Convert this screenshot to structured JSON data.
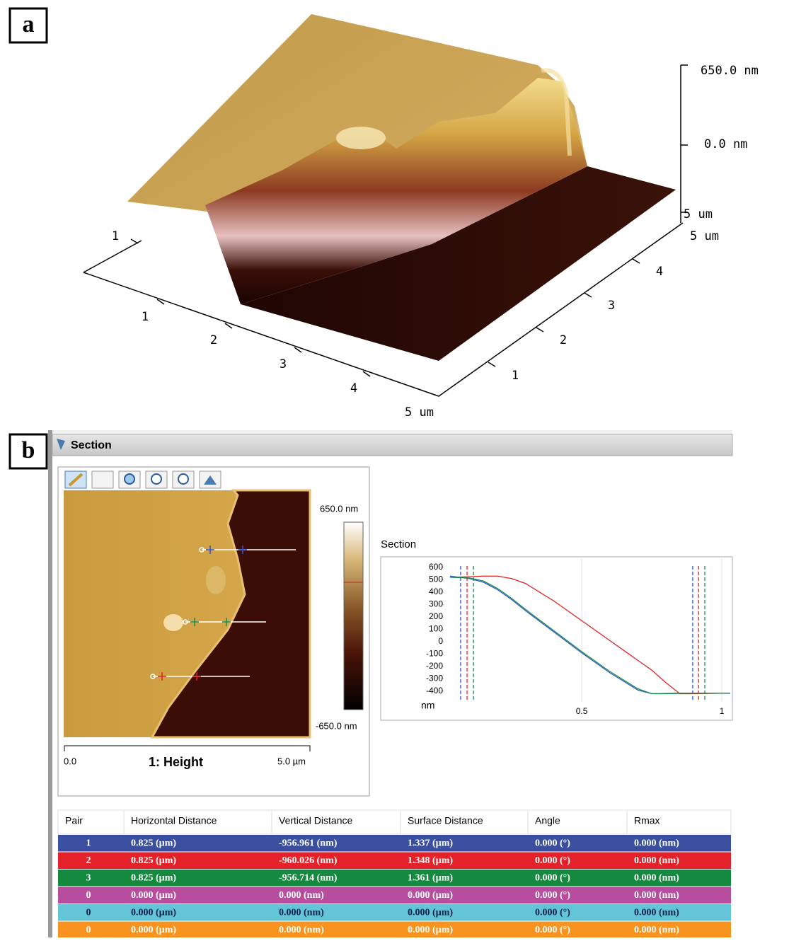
{
  "panel_a": {
    "label": "a",
    "z_ticks": [
      "650.0 nm",
      "0.0 nm",
      "5 um"
    ],
    "left_ticks": [
      "1",
      "2",
      "3",
      "4",
      "5 um"
    ],
    "right_ticks": [
      "1",
      "2",
      "3",
      "4",
      "5 um"
    ],
    "back_tick": "1"
  },
  "panel_b": {
    "label": "b",
    "window_title": "Section",
    "image": {
      "scale_max": "650.0 nm",
      "scale_min": "-650.0 nm",
      "bar_start": "0.0",
      "channel": "1: Height",
      "bar_end": "5.0 µm"
    },
    "table": {
      "header": [
        "Pair",
        "Horizontal Distance",
        "Vertical Distance",
        "Surface Distance",
        "Angle",
        "Rmax"
      ],
      "rows": [
        {
          "color": "#3a4fa0",
          "cells": [
            "1",
            "0.825 (µm)",
            "-956.961 (nm)",
            "1.337 (µm)",
            "0.000 (°)",
            "0.000 (nm)"
          ]
        },
        {
          "color": "#e5222a",
          "cells": [
            "2",
            "0.825 (µm)",
            "-960.026 (nm)",
            "1.348 (µm)",
            "0.000 (°)",
            "0.000 (nm)"
          ]
        },
        {
          "color": "#138a3e",
          "cells": [
            "3",
            "0.825 (µm)",
            "-956.714 (nm)",
            "1.361 (µm)",
            "0.000 (°)",
            "0.000 (nm)"
          ]
        },
        {
          "color": "#b84c9e",
          "cells": [
            "0",
            "0.000 (µm)",
            "0.000 (nm)",
            "0.000 (µm)",
            "0.000 (°)",
            "0.000 (nm)"
          ]
        },
        {
          "color": "#63c5d5",
          "cells": [
            "0",
            "0.000 (µm)",
            "0.000 (nm)",
            "0.000 (µm)",
            "0.000 (°)",
            "0.000 (nm)"
          ]
        },
        {
          "color": "#f7931e",
          "cells": [
            "0",
            "0.000 (µm)",
            "0.000 (nm)",
            "0.000 (µm)",
            "0.000 (°)",
            "0.000 (nm)"
          ]
        }
      ]
    }
  },
  "chart_data": {
    "type": "line",
    "title": "Section",
    "y_label": "nm",
    "x": [
      0.03,
      0.1,
      0.15,
      0.2,
      0.25,
      0.3,
      0.4,
      0.5,
      0.6,
      0.7,
      0.75,
      0.8,
      0.85,
      0.9,
      1.03
    ],
    "series": [
      {
        "color": "#3355cc",
        "cursor_x": [
          0.068,
          0.896
        ],
        "values": [
          530,
          510,
          480,
          420,
          340,
          250,
          80,
          -90,
          -250,
          -390,
          -420,
          -418,
          -415,
          -415,
          -415
        ]
      },
      {
        "color": "#e02020",
        "cursor_x": [
          0.091,
          0.917
        ],
        "values": [
          520,
          525,
          530,
          530,
          510,
          470,
          330,
          170,
          10,
          -150,
          -230,
          -330,
          -420,
          -420,
          -415
        ]
      },
      {
        "color": "#178a4a",
        "cursor_x": [
          0.114,
          0.939
        ],
        "values": [
          520,
          515,
          490,
          430,
          350,
          260,
          90,
          -80,
          -240,
          -380,
          -420,
          -420,
          -418,
          -416,
          -416
        ]
      }
    ],
    "xlim": [
      0,
      1.03
    ],
    "ylim": [
      -450,
      640
    ],
    "xticks": [
      0.5,
      1
    ],
    "yticks": [
      -400,
      -300,
      -200,
      -100,
      0,
      100,
      200,
      300,
      400,
      500,
      600
    ],
    "xgrid": true
  }
}
